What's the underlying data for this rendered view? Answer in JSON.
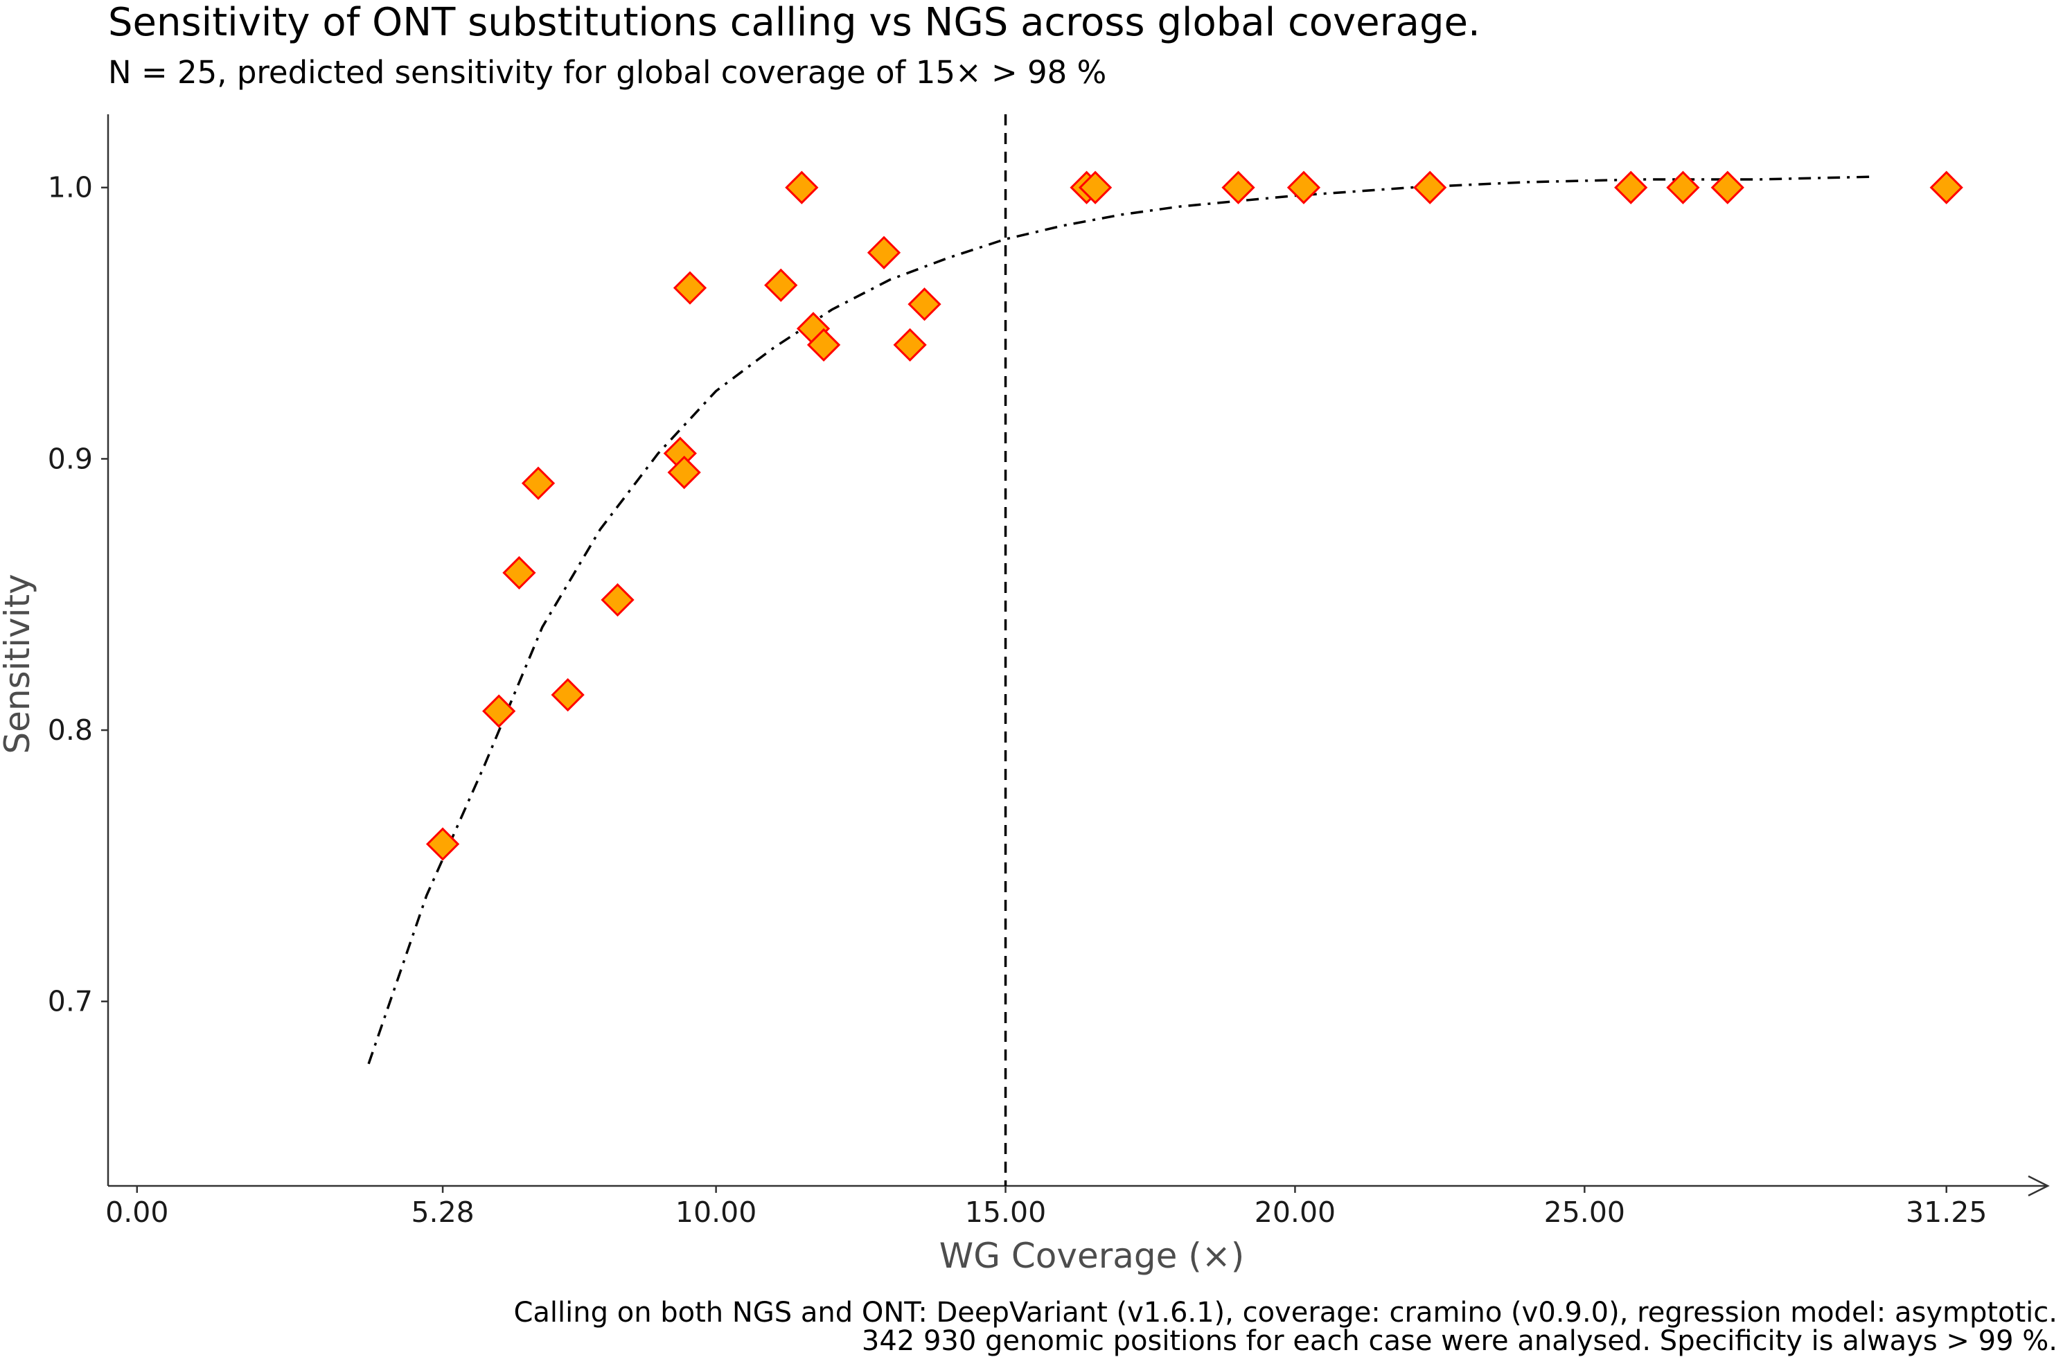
{
  "chart_data": {
    "type": "scatter",
    "title": "Sensitivity of ONT substitutions calling vs NGS across global coverage.",
    "subtitle": "N = 25, predicted sensitivity for global coverage of 15× > 98 %",
    "xlabel": "WG Coverage (×)",
    "ylabel": "Sensitivity",
    "xlim": [
      -0.5,
      33.0
    ],
    "ylim": [
      0.632,
      1.027
    ],
    "x_ticks": [
      0.0,
      5.28,
      10.0,
      15.0,
      20.0,
      25.0,
      31.25
    ],
    "x_tick_labels": [
      "0.00",
      "5.28",
      "10.00",
      "15.00",
      "20.00",
      "25.00",
      "31.25"
    ],
    "y_ticks": [
      0.7,
      0.8,
      0.9,
      1.0
    ],
    "y_tick_labels": [
      "0.7",
      "0.8",
      "0.9",
      "1.0"
    ],
    "grid": false,
    "reference_line": {
      "x": 15.0,
      "style": "dashed"
    },
    "points": [
      {
        "x": 5.28,
        "y": 0.758
      },
      {
        "x": 6.25,
        "y": 0.807
      },
      {
        "x": 6.6,
        "y": 0.858
      },
      {
        "x": 6.93,
        "y": 0.891
      },
      {
        "x": 7.44,
        "y": 0.813
      },
      {
        "x": 8.3,
        "y": 0.848
      },
      {
        "x": 9.38,
        "y": 0.902
      },
      {
        "x": 9.45,
        "y": 0.895
      },
      {
        "x": 9.55,
        "y": 0.963
      },
      {
        "x": 11.12,
        "y": 0.964
      },
      {
        "x": 11.48,
        "y": 1.0
      },
      {
        "x": 11.68,
        "y": 0.948
      },
      {
        "x": 11.86,
        "y": 0.942
      },
      {
        "x": 12.9,
        "y": 0.976
      },
      {
        "x": 13.35,
        "y": 0.942
      },
      {
        "x": 13.6,
        "y": 0.957
      },
      {
        "x": 16.4,
        "y": 1.0
      },
      {
        "x": 16.55,
        "y": 1.0
      },
      {
        "x": 19.02,
        "y": 1.0
      },
      {
        "x": 20.15,
        "y": 1.0
      },
      {
        "x": 22.33,
        "y": 1.0
      },
      {
        "x": 25.8,
        "y": 1.0
      },
      {
        "x": 26.7,
        "y": 1.0
      },
      {
        "x": 27.47,
        "y": 1.0
      },
      {
        "x": 31.25,
        "y": 1.0
      }
    ],
    "fit_curve": {
      "model": "asymptotic",
      "style": "dash-dot",
      "x": [
        4.0,
        5.0,
        6.0,
        7.0,
        8.0,
        9.0,
        10.0,
        11.0,
        12.0,
        13.0,
        14.0,
        15.0,
        16.0,
        17.0,
        18.0,
        19.0,
        20.0,
        22.0,
        24.0,
        26.0,
        28.0,
        30.0
      ],
      "y": [
        0.677,
        0.739,
        0.787,
        0.838,
        0.874,
        0.902,
        0.925,
        0.941,
        0.955,
        0.966,
        0.974,
        0.981,
        0.986,
        0.99,
        0.993,
        0.995,
        0.997,
        1.0,
        1.002,
        1.003,
        1.003,
        1.004
      ]
    },
    "marker": {
      "shape": "diamond",
      "fill": "#FFA500",
      "stroke": "#FF0000"
    },
    "line_color": "#000000",
    "axis_color": "#333333"
  },
  "caption": {
    "line1": "Calling on both NGS and ONT: DeepVariant (v1.6.1), coverage: cramino (v0.9.0), regression model: asymptotic.",
    "line2": "342 930  genomic positions for each case were analysed. Specificity is always > 99 %."
  }
}
